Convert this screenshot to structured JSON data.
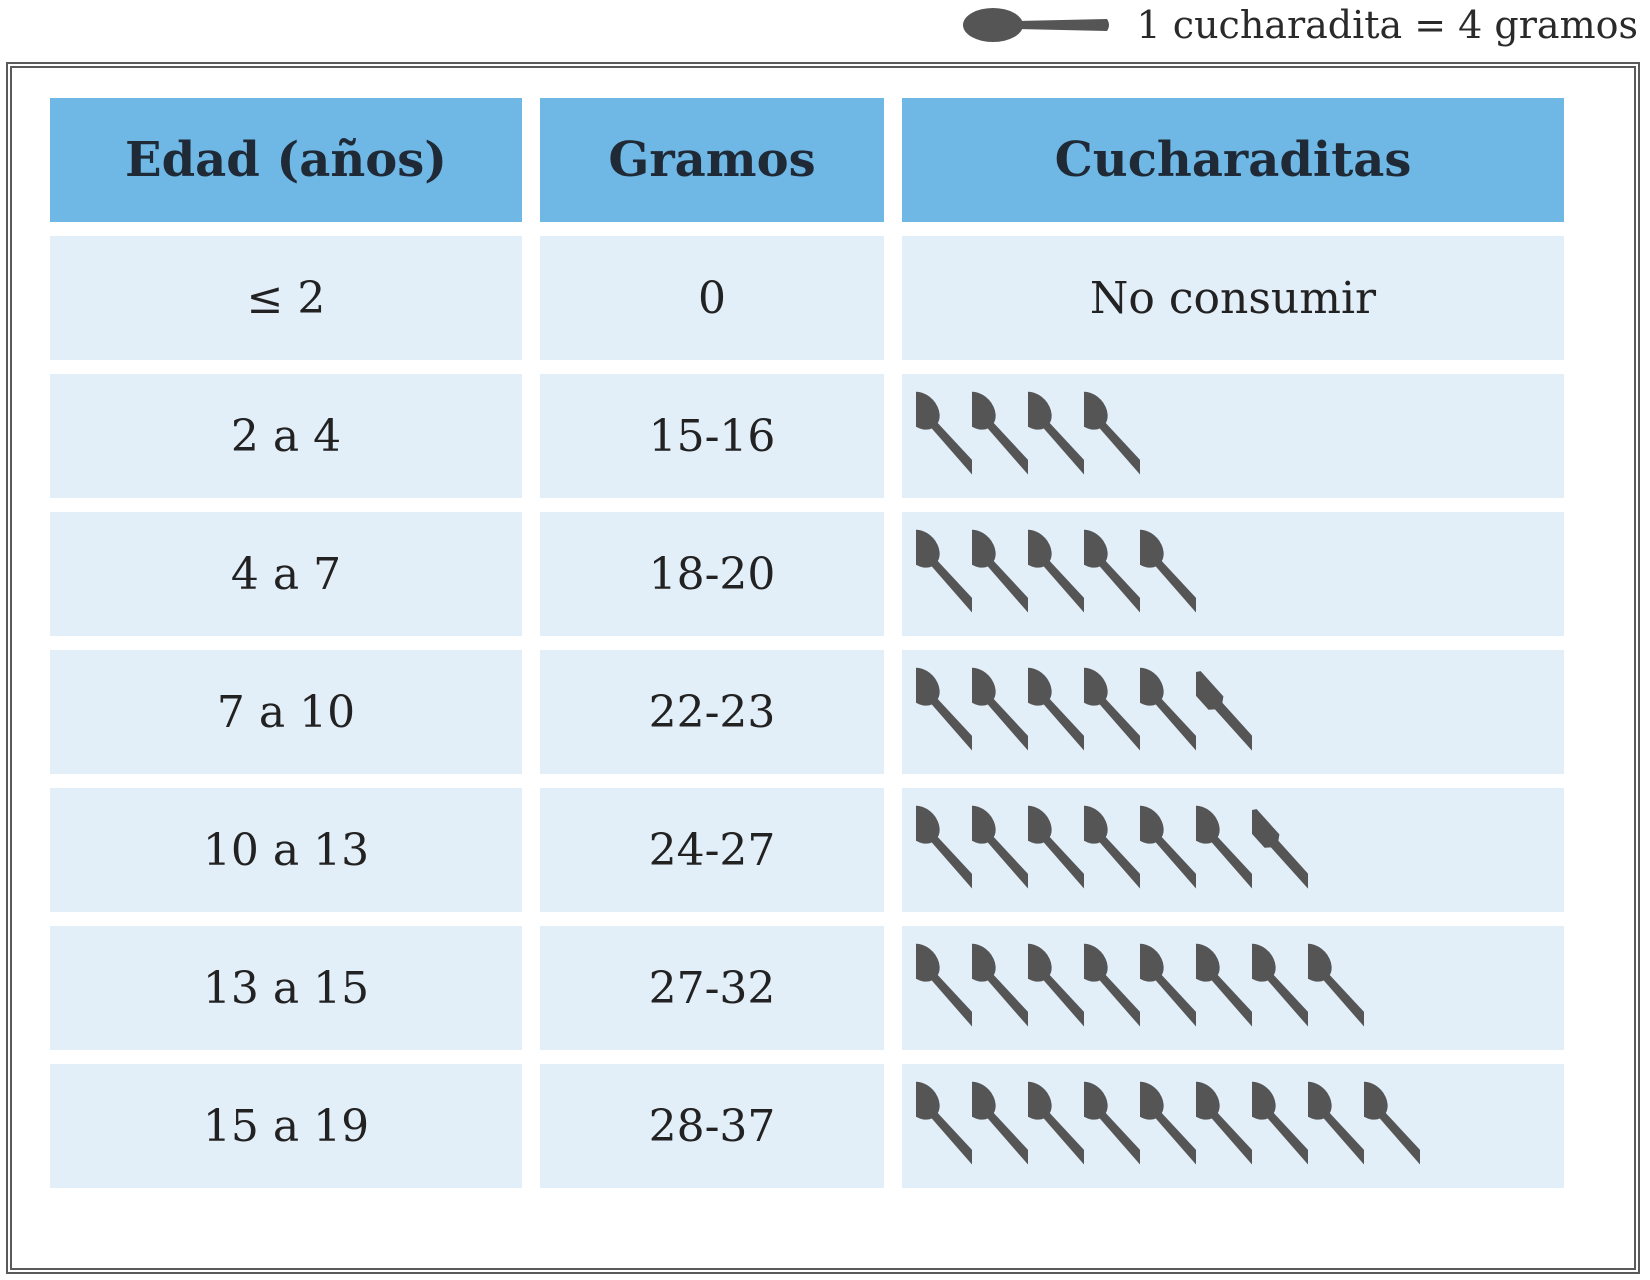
{
  "legend": {
    "label": "1 cucharadita = 4 gramos"
  },
  "colors": {
    "header": "#6fb8e6",
    "row": "#e2eef8",
    "spoon": "#555555",
    "border": "#5a5a5a"
  },
  "icons": {
    "spoon": "spoon-icon",
    "partial_spoon": "partial-spoon-icon"
  },
  "table": {
    "headers": [
      "Edad (años)",
      "Gramos",
      "Cucharaditas"
    ],
    "rows": [
      {
        "age": "≤ 2",
        "grams": "0",
        "teaspoons_text": "No consumir",
        "full_spoons": 0,
        "partial_spoon": false
      },
      {
        "age": "2 a 4",
        "grams": "15-16",
        "teaspoons_text": "",
        "full_spoons": 4,
        "partial_spoon": false
      },
      {
        "age": "4 a 7",
        "grams": "18-20",
        "teaspoons_text": "",
        "full_spoons": 5,
        "partial_spoon": false
      },
      {
        "age": "7 a 10",
        "grams": "22-23",
        "teaspoons_text": "",
        "full_spoons": 5,
        "partial_spoon": true
      },
      {
        "age": "10 a 13",
        "grams": "24-27",
        "teaspoons_text": "",
        "full_spoons": 6,
        "partial_spoon": true
      },
      {
        "age": "13 a 15",
        "grams": "27-32",
        "teaspoons_text": "",
        "full_spoons": 8,
        "partial_spoon": false
      },
      {
        "age": "15 a 19",
        "grams": "28-37",
        "teaspoons_text": "",
        "full_spoons": 9,
        "partial_spoon": false
      }
    ]
  }
}
